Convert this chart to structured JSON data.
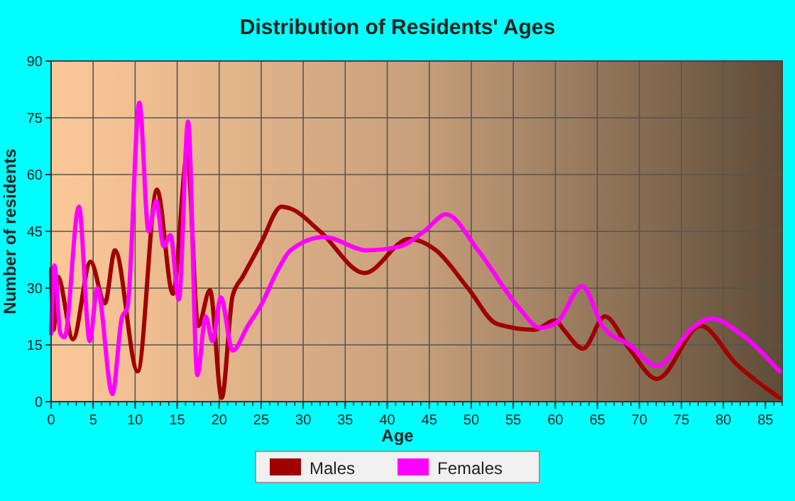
{
  "chart_data": {
    "type": "line",
    "title": "Distribution of Residents' Ages",
    "xlabel": "Age",
    "ylabel": "Number of residents",
    "xlim": [
      0,
      87
    ],
    "xticks": [
      0,
      5,
      10,
      15,
      20,
      25,
      30,
      35,
      40,
      45,
      50,
      55,
      60,
      65,
      70,
      75,
      80,
      85
    ],
    "ylim": [
      0,
      90
    ],
    "yticks": [
      0,
      15,
      30,
      45,
      60,
      75,
      90
    ],
    "grid": true,
    "legend": "bottom",
    "marker": "none",
    "line_style": "solid",
    "series": [
      {
        "name": "Males",
        "color": "#a00000",
        "x": [
          0,
          0.3,
          0.8,
          2.6,
          4.7,
          6.4,
          7.6,
          10.3,
          12.6,
          14.5,
          16.2,
          17.5,
          18.9,
          20.3,
          21.6,
          22.8,
          25,
          27.4,
          28.5,
          32,
          37.3,
          42.6,
          45.8,
          49.6,
          53.1,
          57.5,
          60,
          61,
          63.3,
          65.9,
          68.8,
          72.1,
          77.3,
          81.5,
          86.7
        ],
        "values": [
          35,
          19,
          33,
          16.5,
          37,
          26,
          40,
          8,
          56,
          28.5,
          65,
          20,
          29.5,
          1,
          28,
          33,
          42,
          51.5,
          51,
          45,
          34,
          43,
          40,
          30,
          20.5,
          19,
          21.5,
          19,
          14,
          22.5,
          14,
          6,
          20,
          10,
          1
        ]
      },
      {
        "name": "Females",
        "color": "#ff00ff",
        "x": [
          0,
          0.4,
          1.1,
          1.6,
          3.3,
          4.6,
          5.5,
          7.3,
          8.4,
          9.1,
          10.5,
          11.6,
          12.5,
          13.4,
          14.2,
          15.2,
          16.3,
          17.4,
          18.4,
          19.2,
          20.2,
          21.6,
          23.4,
          25.1,
          26.8,
          28.5,
          32.5,
          37.5,
          41.5,
          44.4,
          47,
          50.8,
          55.6,
          58.2,
          60.2,
          63.2,
          65.6,
          68.8,
          72.1,
          76.6,
          78.6,
          82,
          86.7
        ],
        "values": [
          18,
          36,
          18,
          17,
          51.5,
          16,
          30,
          2,
          22,
          25,
          79,
          45,
          53,
          41,
          44,
          27,
          74,
          7,
          22.5,
          16,
          27.5,
          13.5,
          20,
          26,
          34,
          40,
          43.5,
          40,
          41,
          45,
          49.5,
          40,
          25,
          19.5,
          21,
          30.5,
          20,
          15,
          9.5,
          20,
          22,
          18,
          8
        ]
      }
    ]
  }
}
